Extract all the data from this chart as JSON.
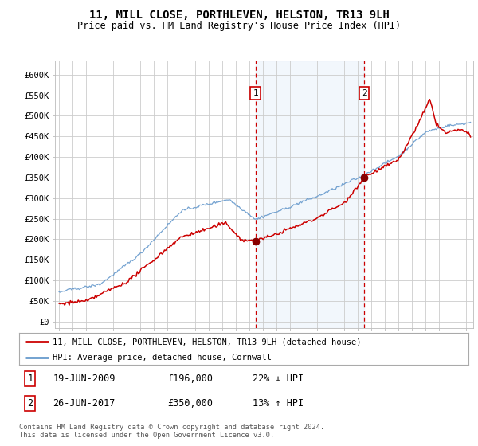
{
  "title": "11, MILL CLOSE, PORTHLEVEN, HELSTON, TR13 9LH",
  "subtitle": "Price paid vs. HM Land Registry's House Price Index (HPI)",
  "ylim": [
    0,
    620000
  ],
  "xlim_start": 1994.7,
  "xlim_end": 2025.5,
  "sale1_year": 2009.46,
  "sale1_price": 196000,
  "sale1_label": "19-JUN-2009",
  "sale1_pct": "22% ↓ HPI",
  "sale2_year": 2017.48,
  "sale2_price": 350000,
  "sale2_label": "26-JUN-2017",
  "sale2_pct": "13% ↑ HPI",
  "legend_line1": "11, MILL CLOSE, PORTHLEVEN, HELSTON, TR13 9LH (detached house)",
  "legend_line2": "HPI: Average price, detached house, Cornwall",
  "footnote": "Contains HM Land Registry data © Crown copyright and database right 2024.\nThis data is licensed under the Open Government Licence v3.0.",
  "red_color": "#cc0000",
  "blue_color": "#6699cc",
  "shade_color": "#ddeeff",
  "grid_color": "#cccccc",
  "background_color": "#ffffff"
}
